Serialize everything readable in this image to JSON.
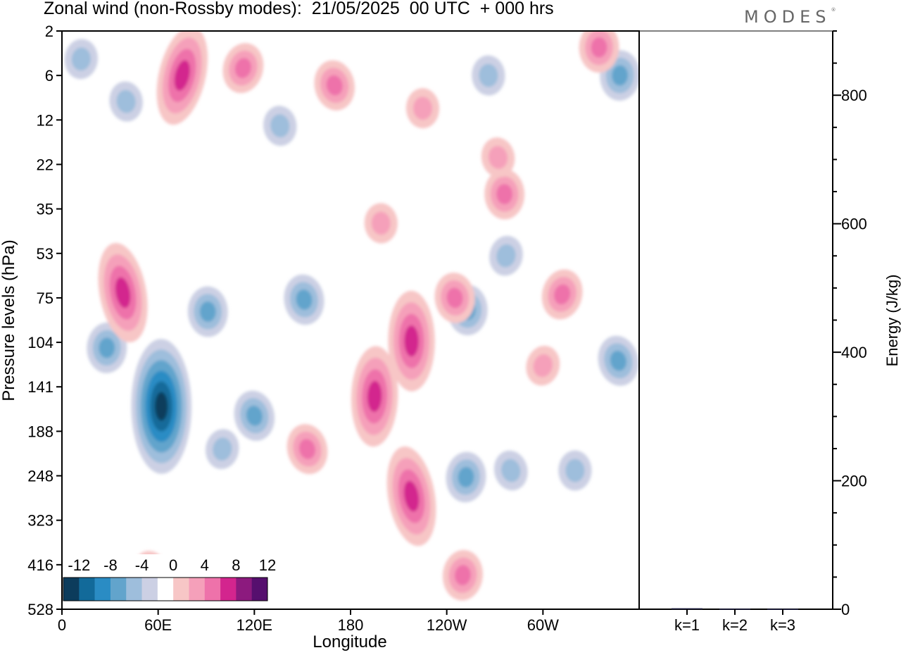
{
  "title": "Zonal wind (non-Rossby modes):  21/05/2025  00 UTC  + 000 hrs",
  "logo": "MODES",
  "logo_mark": "®",
  "chart_data": [
    {
      "type": "heatmap",
      "title": "Zonal wind (non-Rossby modes):  21/05/2025  00 UTC  + 000 hrs",
      "xlabel": "Longitude",
      "ylabel": "Pressure levels (hPa)",
      "x_ticks": [
        "0",
        "60E",
        "120E",
        "180",
        "120W",
        "60W"
      ],
      "x_tick_degrees": [
        0,
        60,
        120,
        180,
        240,
        300
      ],
      "xlim": [
        0,
        360
      ],
      "y_ticks": [
        "2",
        "6",
        "12",
        "22",
        "35",
        "53",
        "75",
        "104",
        "141",
        "188",
        "248",
        "323",
        "416",
        "528"
      ],
      "colorbar": {
        "tick_labels": [
          "-12",
          "-8",
          "-4",
          "0",
          "4",
          "8",
          "12"
        ],
        "levels": [
          -14,
          -12,
          -10,
          -8,
          -6,
          -4,
          -2,
          2,
          4,
          6,
          8,
          10,
          12,
          14
        ],
        "colors": [
          "#0c3c5c",
          "#126a9a",
          "#2a8cc4",
          "#62a4cc",
          "#9ebedc",
          "#ccd0e4",
          "#ffffff",
          "#f7c6c6",
          "#f5a0ba",
          "#ee72aa",
          "#d3258e",
          "#8c1a7e",
          "#560f6e"
        ]
      },
      "grid": false,
      "series": [
        {
          "kind": "negative",
          "features": [
            {
              "lon": 62,
              "level": 160,
              "min": -12
            },
            {
              "lon": 28,
              "level": 108,
              "min": -6
            },
            {
              "lon": 120,
              "level": 170,
              "min": -6
            },
            {
              "lon": 151,
              "level": 76,
              "min": -6
            },
            {
              "lon": 91,
              "level": 83,
              "min": -6
            },
            {
              "lon": 253,
              "level": 82,
              "min": -6
            },
            {
              "lon": 347,
              "level": 118,
              "min": -6
            },
            {
              "lon": 277,
              "level": 54,
              "min": -4
            },
            {
              "lon": 348,
              "level": 6,
              "min": -6
            },
            {
              "lon": 266,
              "level": 6,
              "min": -4
            },
            {
              "lon": 136,
              "level": 13,
              "min": -4
            },
            {
              "lon": 100,
              "level": 210,
              "min": -4
            },
            {
              "lon": 252,
              "level": 250,
              "min": -6
            },
            {
              "lon": 280,
              "level": 240,
              "min": -4
            },
            {
              "lon": 320,
              "level": 240,
              "min": -4
            },
            {
              "lon": 40,
              "level": 9,
              "min": -4
            },
            {
              "lon": 12,
              "level": 4,
              "min": -4
            }
          ]
        },
        {
          "kind": "positive",
          "features": [
            {
              "lon": 38,
              "level": 72,
              "max": 8
            },
            {
              "lon": 195,
              "level": 150,
              "max": 8
            },
            {
              "lon": 218,
              "level": 103,
              "max": 8
            },
            {
              "lon": 218,
              "level": 280,
              "max": 8
            },
            {
              "lon": 153,
              "level": 210,
              "max": 6
            },
            {
              "lon": 75,
              "level": 6,
              "max": 8
            },
            {
              "lon": 113,
              "level": 5,
              "max": 6
            },
            {
              "lon": 170,
              "level": 7,
              "max": 6
            },
            {
              "lon": 276,
              "level": 30,
              "max": 6
            },
            {
              "lon": 312,
              "level": 73,
              "max": 6
            },
            {
              "lon": 272,
              "level": 20,
              "max": 4
            },
            {
              "lon": 199,
              "level": 40,
              "max": 4
            },
            {
              "lon": 335,
              "level": 3,
              "max": 6
            },
            {
              "lon": 250,
              "level": 440,
              "max": 6
            },
            {
              "lon": 245,
              "level": 75,
              "max": 6
            },
            {
              "lon": 55,
              "level": 430,
              "max": 4
            },
            {
              "lon": 300,
              "level": 122,
              "max": 4
            },
            {
              "lon": 225,
              "level": 10,
              "max": 4
            }
          ]
        }
      ]
    },
    {
      "type": "bar",
      "categories": [
        "k=1",
        "k=2",
        "k=3"
      ],
      "values": [
        1.5,
        0.9,
        0.6
      ],
      "ylabel": "Energy (J/kg)",
      "y_ticks": [
        "0",
        "200",
        "400",
        "600",
        "800"
      ],
      "ylim": [
        0,
        900
      ]
    }
  ]
}
